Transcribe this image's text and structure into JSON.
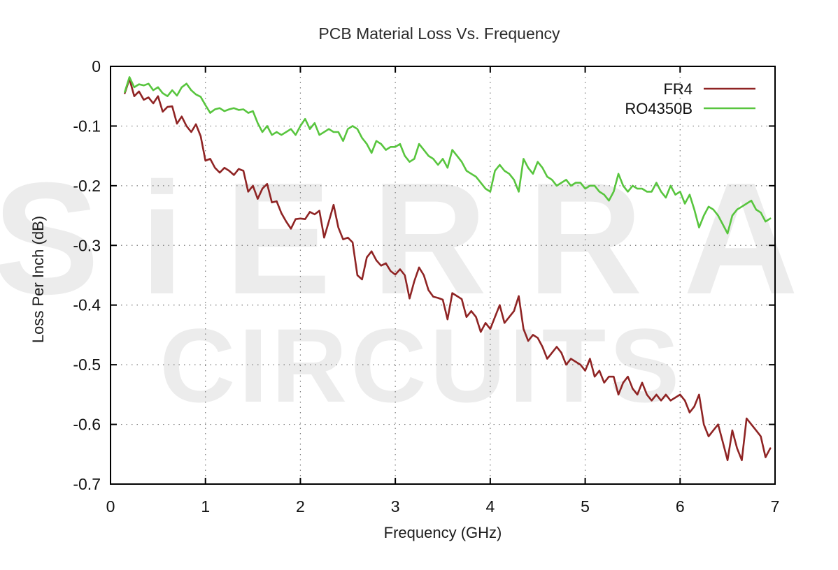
{
  "watermark": {
    "line1": "SiERRA",
    "line2": "CIRCUITS",
    "color": "#ececec"
  },
  "chart_data": {
    "type": "line",
    "title": "PCB Material Loss Vs. Frequency",
    "xlabel": "Frequency (GHz)",
    "ylabel": "Loss Per Inch (dB)",
    "xlim": [
      0,
      7
    ],
    "ylim": [
      -0.7,
      0
    ],
    "grid": true,
    "grid_style": "dotted",
    "legend_position": "top-right",
    "background_color": "#ffffff",
    "border_color": "#000000",
    "xticks": [
      0,
      1,
      2,
      3,
      4,
      5,
      6,
      7
    ],
    "xtick_labels": [
      "0",
      "1",
      "2",
      "3",
      "4",
      "5",
      "6",
      "7"
    ],
    "yticks": [
      0,
      -0.1,
      -0.2,
      -0.3,
      -0.4,
      -0.5,
      -0.6,
      -0.7
    ],
    "ytick_labels": [
      "0",
      "-0.1",
      "-0.2",
      "-0.3",
      "-0.4",
      "-0.5",
      "-0.6",
      "-0.7"
    ],
    "series": [
      {
        "name": "FR4",
        "color": "#8f2424",
        "points": [
          [
            0.15,
            -0.045
          ],
          [
            0.2,
            -0.021
          ],
          [
            0.25,
            -0.05
          ],
          [
            0.3,
            -0.042
          ],
          [
            0.35,
            -0.056
          ],
          [
            0.4,
            -0.052
          ],
          [
            0.45,
            -0.062
          ],
          [
            0.5,
            -0.05
          ],
          [
            0.55,
            -0.076
          ],
          [
            0.6,
            -0.068
          ],
          [
            0.65,
            -0.067
          ],
          [
            0.7,
            -0.096
          ],
          [
            0.75,
            -0.084
          ],
          [
            0.8,
            -0.1
          ],
          [
            0.85,
            -0.11
          ],
          [
            0.9,
            -0.097
          ],
          [
            0.95,
            -0.117
          ],
          [
            1.0,
            -0.158
          ],
          [
            1.05,
            -0.155
          ],
          [
            1.1,
            -0.17
          ],
          [
            1.15,
            -0.178
          ],
          [
            1.2,
            -0.17
          ],
          [
            1.25,
            -0.175
          ],
          [
            1.3,
            -0.182
          ],
          [
            1.35,
            -0.172
          ],
          [
            1.4,
            -0.175
          ],
          [
            1.45,
            -0.21
          ],
          [
            1.5,
            -0.2
          ],
          [
            1.55,
            -0.222
          ],
          [
            1.6,
            -0.205
          ],
          [
            1.65,
            -0.197
          ],
          [
            1.7,
            -0.228
          ],
          [
            1.75,
            -0.226
          ],
          [
            1.8,
            -0.246
          ],
          [
            1.85,
            -0.26
          ],
          [
            1.9,
            -0.272
          ],
          [
            1.95,
            -0.256
          ],
          [
            2.0,
            -0.255
          ],
          [
            2.05,
            -0.256
          ],
          [
            2.1,
            -0.244
          ],
          [
            2.15,
            -0.248
          ],
          [
            2.2,
            -0.242
          ],
          [
            2.25,
            -0.287
          ],
          [
            2.3,
            -0.26
          ],
          [
            2.35,
            -0.232
          ],
          [
            2.4,
            -0.27
          ],
          [
            2.45,
            -0.29
          ],
          [
            2.5,
            -0.287
          ],
          [
            2.55,
            -0.295
          ],
          [
            2.6,
            -0.35
          ],
          [
            2.65,
            -0.357
          ],
          [
            2.7,
            -0.32
          ],
          [
            2.75,
            -0.31
          ],
          [
            2.8,
            -0.325
          ],
          [
            2.85,
            -0.334
          ],
          [
            2.9,
            -0.33
          ],
          [
            2.95,
            -0.343
          ],
          [
            3.0,
            -0.349
          ],
          [
            3.05,
            -0.34
          ],
          [
            3.1,
            -0.35
          ],
          [
            3.15,
            -0.389
          ],
          [
            3.2,
            -0.36
          ],
          [
            3.25,
            -0.337
          ],
          [
            3.3,
            -0.35
          ],
          [
            3.35,
            -0.375
          ],
          [
            3.4,
            -0.386
          ],
          [
            3.45,
            -0.388
          ],
          [
            3.5,
            -0.391
          ],
          [
            3.55,
            -0.424
          ],
          [
            3.6,
            -0.38
          ],
          [
            3.65,
            -0.385
          ],
          [
            3.7,
            -0.39
          ],
          [
            3.75,
            -0.42
          ],
          [
            3.8,
            -0.41
          ],
          [
            3.85,
            -0.42
          ],
          [
            3.9,
            -0.445
          ],
          [
            3.95,
            -0.43
          ],
          [
            4.0,
            -0.44
          ],
          [
            4.05,
            -0.42
          ],
          [
            4.1,
            -0.4
          ],
          [
            4.15,
            -0.43
          ],
          [
            4.2,
            -0.42
          ],
          [
            4.25,
            -0.41
          ],
          [
            4.3,
            -0.385
          ],
          [
            4.35,
            -0.44
          ],
          [
            4.4,
            -0.46
          ],
          [
            4.45,
            -0.45
          ],
          [
            4.5,
            -0.455
          ],
          [
            4.55,
            -0.47
          ],
          [
            4.6,
            -0.49
          ],
          [
            4.65,
            -0.48
          ],
          [
            4.7,
            -0.47
          ],
          [
            4.75,
            -0.48
          ],
          [
            4.8,
            -0.5
          ],
          [
            4.85,
            -0.49
          ],
          [
            4.9,
            -0.495
          ],
          [
            4.95,
            -0.5
          ],
          [
            5.0,
            -0.51
          ],
          [
            5.05,
            -0.49
          ],
          [
            5.1,
            -0.52
          ],
          [
            5.15,
            -0.51
          ],
          [
            5.2,
            -0.53
          ],
          [
            5.25,
            -0.52
          ],
          [
            5.3,
            -0.52
          ],
          [
            5.35,
            -0.55
          ],
          [
            5.4,
            -0.53
          ],
          [
            5.45,
            -0.52
          ],
          [
            5.5,
            -0.54
          ],
          [
            5.55,
            -0.55
          ],
          [
            5.6,
            -0.53
          ],
          [
            5.65,
            -0.55
          ],
          [
            5.7,
            -0.56
          ],
          [
            5.75,
            -0.55
          ],
          [
            5.8,
            -0.56
          ],
          [
            5.85,
            -0.55
          ],
          [
            5.9,
            -0.56
          ],
          [
            5.95,
            -0.555
          ],
          [
            6.0,
            -0.55
          ],
          [
            6.05,
            -0.56
          ],
          [
            6.1,
            -0.58
          ],
          [
            6.15,
            -0.57
          ],
          [
            6.2,
            -0.55
          ],
          [
            6.25,
            -0.6
          ],
          [
            6.3,
            -0.62
          ],
          [
            6.35,
            -0.61
          ],
          [
            6.4,
            -0.6
          ],
          [
            6.45,
            -0.63
          ],
          [
            6.5,
            -0.66
          ],
          [
            6.55,
            -0.61
          ],
          [
            6.6,
            -0.64
          ],
          [
            6.65,
            -0.66
          ],
          [
            6.7,
            -0.59
          ],
          [
            6.75,
            -0.6
          ],
          [
            6.8,
            -0.61
          ],
          [
            6.85,
            -0.62
          ],
          [
            6.9,
            -0.655
          ],
          [
            6.95,
            -0.64
          ]
        ]
      },
      {
        "name": "RO4350B",
        "color": "#58c53e",
        "points": [
          [
            0.15,
            -0.043
          ],
          [
            0.2,
            -0.018
          ],
          [
            0.25,
            -0.035
          ],
          [
            0.3,
            -0.03
          ],
          [
            0.35,
            -0.032
          ],
          [
            0.4,
            -0.029
          ],
          [
            0.45,
            -0.04
          ],
          [
            0.5,
            -0.035
          ],
          [
            0.55,
            -0.045
          ],
          [
            0.6,
            -0.05
          ],
          [
            0.65,
            -0.04
          ],
          [
            0.7,
            -0.049
          ],
          [
            0.75,
            -0.035
          ],
          [
            0.8,
            -0.029
          ],
          [
            0.85,
            -0.04
          ],
          [
            0.9,
            -0.047
          ],
          [
            0.95,
            -0.051
          ],
          [
            1.0,
            -0.065
          ],
          [
            1.05,
            -0.078
          ],
          [
            1.1,
            -0.072
          ],
          [
            1.15,
            -0.07
          ],
          [
            1.2,
            -0.075
          ],
          [
            1.25,
            -0.072
          ],
          [
            1.3,
            -0.07
          ],
          [
            1.35,
            -0.073
          ],
          [
            1.4,
            -0.072
          ],
          [
            1.45,
            -0.078
          ],
          [
            1.5,
            -0.075
          ],
          [
            1.55,
            -0.095
          ],
          [
            1.6,
            -0.11
          ],
          [
            1.65,
            -0.1
          ],
          [
            1.7,
            -0.115
          ],
          [
            1.75,
            -0.11
          ],
          [
            1.8,
            -0.115
          ],
          [
            1.85,
            -0.11
          ],
          [
            1.9,
            -0.105
          ],
          [
            1.95,
            -0.115
          ],
          [
            2.0,
            -0.1
          ],
          [
            2.05,
            -0.088
          ],
          [
            2.1,
            -0.105
          ],
          [
            2.15,
            -0.095
          ],
          [
            2.2,
            -0.115
          ],
          [
            2.25,
            -0.11
          ],
          [
            2.3,
            -0.105
          ],
          [
            2.35,
            -0.11
          ],
          [
            2.4,
            -0.11
          ],
          [
            2.45,
            -0.125
          ],
          [
            2.5,
            -0.105
          ],
          [
            2.55,
            -0.1
          ],
          [
            2.6,
            -0.105
          ],
          [
            2.65,
            -0.12
          ],
          [
            2.7,
            -0.13
          ],
          [
            2.75,
            -0.145
          ],
          [
            2.8,
            -0.125
          ],
          [
            2.85,
            -0.13
          ],
          [
            2.9,
            -0.14
          ],
          [
            2.95,
            -0.135
          ],
          [
            3.0,
            -0.135
          ],
          [
            3.05,
            -0.13
          ],
          [
            3.1,
            -0.15
          ],
          [
            3.15,
            -0.16
          ],
          [
            3.2,
            -0.155
          ],
          [
            3.25,
            -0.13
          ],
          [
            3.3,
            -0.14
          ],
          [
            3.35,
            -0.15
          ],
          [
            3.4,
            -0.155
          ],
          [
            3.45,
            -0.165
          ],
          [
            3.5,
            -0.155
          ],
          [
            3.55,
            -0.17
          ],
          [
            3.6,
            -0.14
          ],
          [
            3.65,
            -0.15
          ],
          [
            3.7,
            -0.16
          ],
          [
            3.75,
            -0.175
          ],
          [
            3.8,
            -0.18
          ],
          [
            3.85,
            -0.185
          ],
          [
            3.9,
            -0.195
          ],
          [
            3.95,
            -0.205
          ],
          [
            4.0,
            -0.21
          ],
          [
            4.05,
            -0.175
          ],
          [
            4.1,
            -0.165
          ],
          [
            4.15,
            -0.175
          ],
          [
            4.2,
            -0.18
          ],
          [
            4.25,
            -0.19
          ],
          [
            4.3,
            -0.21
          ],
          [
            4.35,
            -0.155
          ],
          [
            4.4,
            -0.17
          ],
          [
            4.45,
            -0.18
          ],
          [
            4.5,
            -0.16
          ],
          [
            4.55,
            -0.17
          ],
          [
            4.6,
            -0.185
          ],
          [
            4.65,
            -0.19
          ],
          [
            4.7,
            -0.2
          ],
          [
            4.75,
            -0.195
          ],
          [
            4.8,
            -0.19
          ],
          [
            4.85,
            -0.2
          ],
          [
            4.9,
            -0.195
          ],
          [
            4.95,
            -0.195
          ],
          [
            5.0,
            -0.205
          ],
          [
            5.05,
            -0.2
          ],
          [
            5.1,
            -0.2
          ],
          [
            5.15,
            -0.21
          ],
          [
            5.2,
            -0.215
          ],
          [
            5.25,
            -0.225
          ],
          [
            5.3,
            -0.21
          ],
          [
            5.35,
            -0.18
          ],
          [
            5.4,
            -0.2
          ],
          [
            5.45,
            -0.21
          ],
          [
            5.5,
            -0.2
          ],
          [
            5.55,
            -0.205
          ],
          [
            5.6,
            -0.205
          ],
          [
            5.65,
            -0.21
          ],
          [
            5.7,
            -0.21
          ],
          [
            5.75,
            -0.195
          ],
          [
            5.8,
            -0.21
          ],
          [
            5.85,
            -0.22
          ],
          [
            5.9,
            -0.2
          ],
          [
            5.95,
            -0.215
          ],
          [
            6.0,
            -0.21
          ],
          [
            6.05,
            -0.23
          ],
          [
            6.1,
            -0.215
          ],
          [
            6.15,
            -0.24
          ],
          [
            6.2,
            -0.27
          ],
          [
            6.25,
            -0.25
          ],
          [
            6.3,
            -0.235
          ],
          [
            6.35,
            -0.24
          ],
          [
            6.4,
            -0.25
          ],
          [
            6.45,
            -0.265
          ],
          [
            6.5,
            -0.28
          ],
          [
            6.55,
            -0.25
          ],
          [
            6.6,
            -0.24
          ],
          [
            6.65,
            -0.235
          ],
          [
            6.7,
            -0.23
          ],
          [
            6.75,
            -0.225
          ],
          [
            6.8,
            -0.24
          ],
          [
            6.85,
            -0.245
          ],
          [
            6.9,
            -0.26
          ],
          [
            6.95,
            -0.255
          ]
        ]
      }
    ]
  }
}
